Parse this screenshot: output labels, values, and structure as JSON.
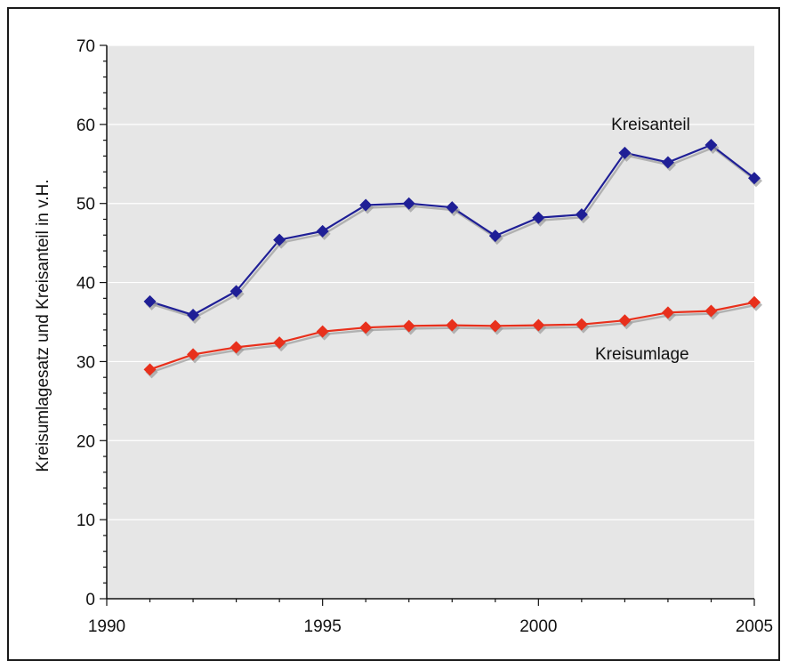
{
  "chart_data": {
    "type": "line",
    "title": "",
    "xlabel": "",
    "ylabel": "Kreisumlagesatz und Kreisanteil in v.H.",
    "xlim": [
      1990,
      2005
    ],
    "ylim": [
      0,
      70
    ],
    "x_ticks": [
      1990,
      1995,
      2000,
      2005
    ],
    "y_ticks": [
      0,
      10,
      20,
      30,
      40,
      50,
      60,
      70
    ],
    "grid": "horizontal",
    "plot_background": "#e6e6e6",
    "x": [
      1991,
      1992,
      1993,
      1994,
      1995,
      1996,
      1997,
      1998,
      1999,
      2000,
      2001,
      2002,
      2003,
      2004,
      2005
    ],
    "series": [
      {
        "name": "Kreisanteil",
        "color": "#1f1f96",
        "marker": "diamond",
        "values": [
          37.6,
          35.9,
          38.9,
          45.4,
          46.5,
          49.8,
          50.0,
          49.5,
          45.9,
          48.2,
          48.6,
          56.4,
          55.2,
          57.4,
          53.2
        ]
      },
      {
        "name": "Kreisumlage",
        "color": "#e8301c",
        "marker": "diamond",
        "values": [
          29.0,
          30.9,
          31.8,
          32.4,
          33.8,
          34.3,
          34.5,
          34.6,
          34.5,
          34.6,
          34.7,
          35.2,
          36.2,
          36.4,
          37.5
        ]
      }
    ]
  }
}
